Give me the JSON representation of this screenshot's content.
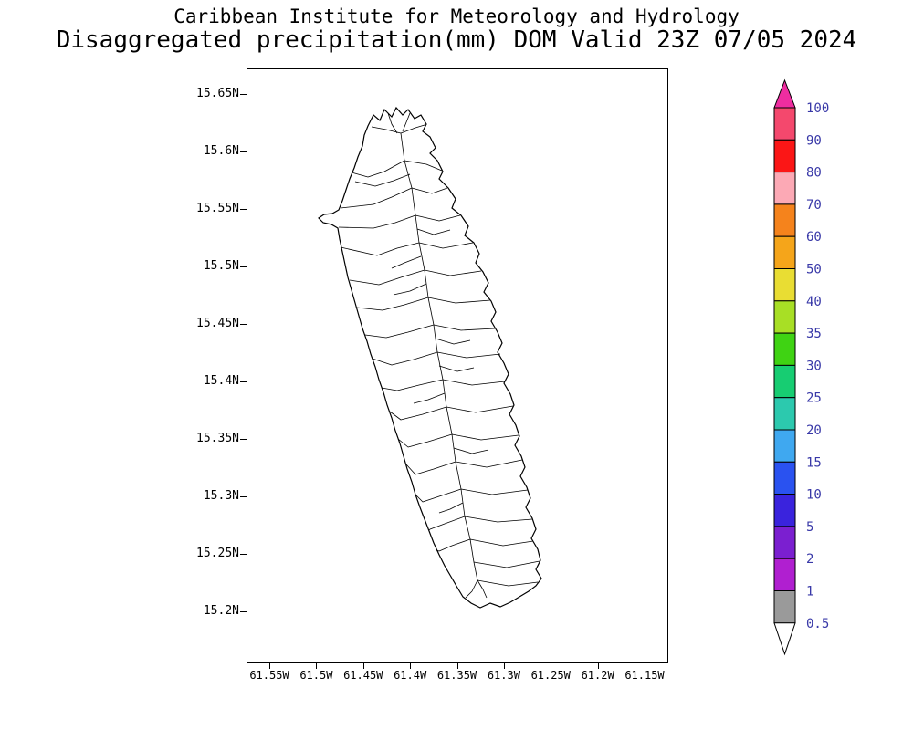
{
  "title": {
    "line1": "Caribbean Institute for Meteorology and Hydrology",
    "line2": "Disaggregated precipitation(mm) DOM Valid 23Z 07/05 2024"
  },
  "map": {
    "y_axis_labels": [
      "15.65N",
      "15.6N",
      "15.55N",
      "15.5N",
      "15.45N",
      "15.4N",
      "15.35N",
      "15.3N",
      "15.25N",
      "15.2N"
    ],
    "x_axis_labels": [
      "61.55W",
      "61.5W",
      "61.45W",
      "61.4W",
      "61.35W",
      "61.3W",
      "61.25W",
      "61.2W",
      "61.15W"
    ]
  },
  "colorbar": {
    "levels": [
      "100",
      "90",
      "80",
      "70",
      "60",
      "50",
      "40",
      "35",
      "30",
      "25",
      "20",
      "15",
      "10",
      "5",
      "2",
      "1",
      "0.5"
    ],
    "colors_top_to_bottom": [
      "#f4486d",
      "#fb1616",
      "#fca9b5",
      "#f5831c",
      "#f5a51a",
      "#e9dd33",
      "#a8df25",
      "#3fd313",
      "#17cd72",
      "#2cc9ae",
      "#3fa8f0",
      "#2a52f0",
      "#3a23dd",
      "#7b1fd0",
      "#b01fd0",
      "#9a9a9a"
    ],
    "over_color": "#ef2da0",
    "under_color": "#ffffff",
    "label_color": "#3939a8",
    "outline_color": "#000000"
  }
}
